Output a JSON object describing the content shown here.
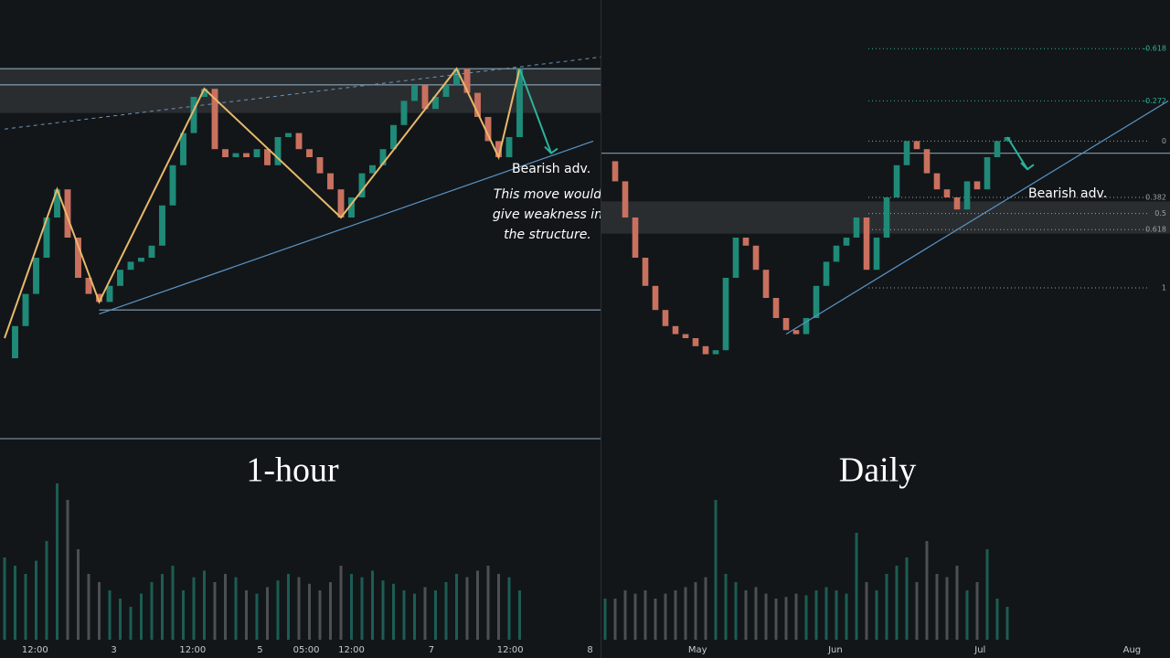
{
  "panels": [
    {
      "name": "1-hour",
      "closes": [
        20,
        28,
        36,
        45,
        55,
        62,
        50,
        40,
        36,
        34,
        38,
        42,
        44,
        45,
        48,
        58,
        68,
        76,
        85,
        87,
        72,
        70,
        71,
        70,
        72,
        68,
        75,
        76,
        72,
        70,
        66,
        62,
        55,
        60,
        66,
        68,
        72,
        78,
        84,
        88,
        82,
        85,
        88,
        92,
        86,
        80,
        74,
        70,
        75,
        92
      ],
      "volumes": [
        50,
        45,
        40,
        48,
        60,
        95,
        85,
        55,
        40,
        35,
        30,
        25,
        20,
        28,
        35,
        40,
        45,
        30,
        38,
        42,
        35,
        40,
        38,
        30,
        28,
        32,
        36,
        40,
        38,
        34,
        30,
        35,
        45,
        40,
        38,
        42,
        36,
        34,
        30,
        28,
        32,
        30,
        35,
        40,
        38,
        42,
        45,
        40,
        38,
        30
      ],
      "ylim": [
        0,
        100
      ],
      "vlim": [
        0,
        100
      ],
      "levels": [
        92,
        88,
        0,
        32
      ],
      "zone": [
        81,
        92
      ],
      "zigzag": [
        [
          0,
          25
        ],
        [
          5,
          62
        ],
        [
          9,
          34
        ],
        [
          19,
          87
        ],
        [
          32,
          55
        ],
        [
          43,
          92
        ],
        [
          47,
          70
        ],
        [
          49,
          92
        ]
      ],
      "trendline": [
        [
          9,
          31
        ],
        [
          56,
          74
        ]
      ],
      "dashed": [
        [
          0,
          77
        ],
        [
          57,
          95
        ]
      ],
      "arrow": [
        [
          49,
          92
        ],
        [
          52,
          71
        ]
      ],
      "xticks": [
        {
          "value": 2.9,
          "label": "12:00"
        },
        {
          "value": 10.4,
          "label": "3"
        },
        {
          "value": 17.9,
          "label": "12:00"
        },
        {
          "value": 24.3,
          "label": "5"
        },
        {
          "value": 28.7,
          "label": "05:00"
        },
        {
          "value": 33,
          "label": "12:00"
        },
        {
          "value": 40.6,
          "label": "7"
        },
        {
          "value": 48.1,
          "label": "12:00"
        },
        {
          "value": 55.7,
          "label": "8"
        }
      ],
      "annotation": "Bearish adv.",
      "note": [
        "This move would",
        "give weakness in",
        "the structure."
      ]
    },
    {
      "name": "Daily",
      "closes": [
        69,
        64,
        55,
        45,
        38,
        32,
        28,
        26,
        25,
        23,
        21,
        22,
        40,
        50,
        48,
        42,
        35,
        30,
        27,
        26,
        30,
        38,
        44,
        48,
        50,
        55,
        42,
        50,
        60,
        68,
        74,
        72,
        66,
        62,
        60,
        57,
        64,
        62,
        70,
        74,
        75
      ],
      "volumes": [
        25,
        25,
        30,
        28,
        30,
        25,
        28,
        30,
        32,
        35,
        38,
        85,
        40,
        35,
        30,
        32,
        28,
        25,
        26,
        28,
        27,
        30,
        32,
        30,
        28,
        65,
        35,
        30,
        40,
        45,
        50,
        35,
        60,
        40,
        38,
        45,
        30,
        35,
        55,
        25,
        20
      ],
      "ylim": [
        0,
        100
      ],
      "vlim": [
        0,
        100
      ],
      "levels": [
        71
      ],
      "zone": [
        51,
        59
      ],
      "fib": [
        {
          "ratio": -0.618,
          "price": 97
        },
        {
          "ratio": -0.272,
          "price": 84
        },
        {
          "ratio": 0,
          "price": 74
        },
        {
          "ratio": 0.382,
          "price": 60
        },
        {
          "ratio": 0.5,
          "price": 56
        },
        {
          "ratio": 0.618,
          "price": 52
        },
        {
          "ratio": 1,
          "price": 37.5
        }
      ],
      "trendline": [
        [
          18,
          26
        ],
        [
          56,
          84
        ]
      ],
      "arrow": [
        [
          40,
          75
        ],
        [
          42,
          67
        ]
      ],
      "xticks": [
        {
          "value": 9.2,
          "label": "May"
        },
        {
          "value": 22.9,
          "label": "Jun"
        },
        {
          "value": 37.3,
          "label": "Jul"
        },
        {
          "value": 52.4,
          "label": "Aug"
        }
      ],
      "annotation": "Bearish adv."
    }
  ]
}
